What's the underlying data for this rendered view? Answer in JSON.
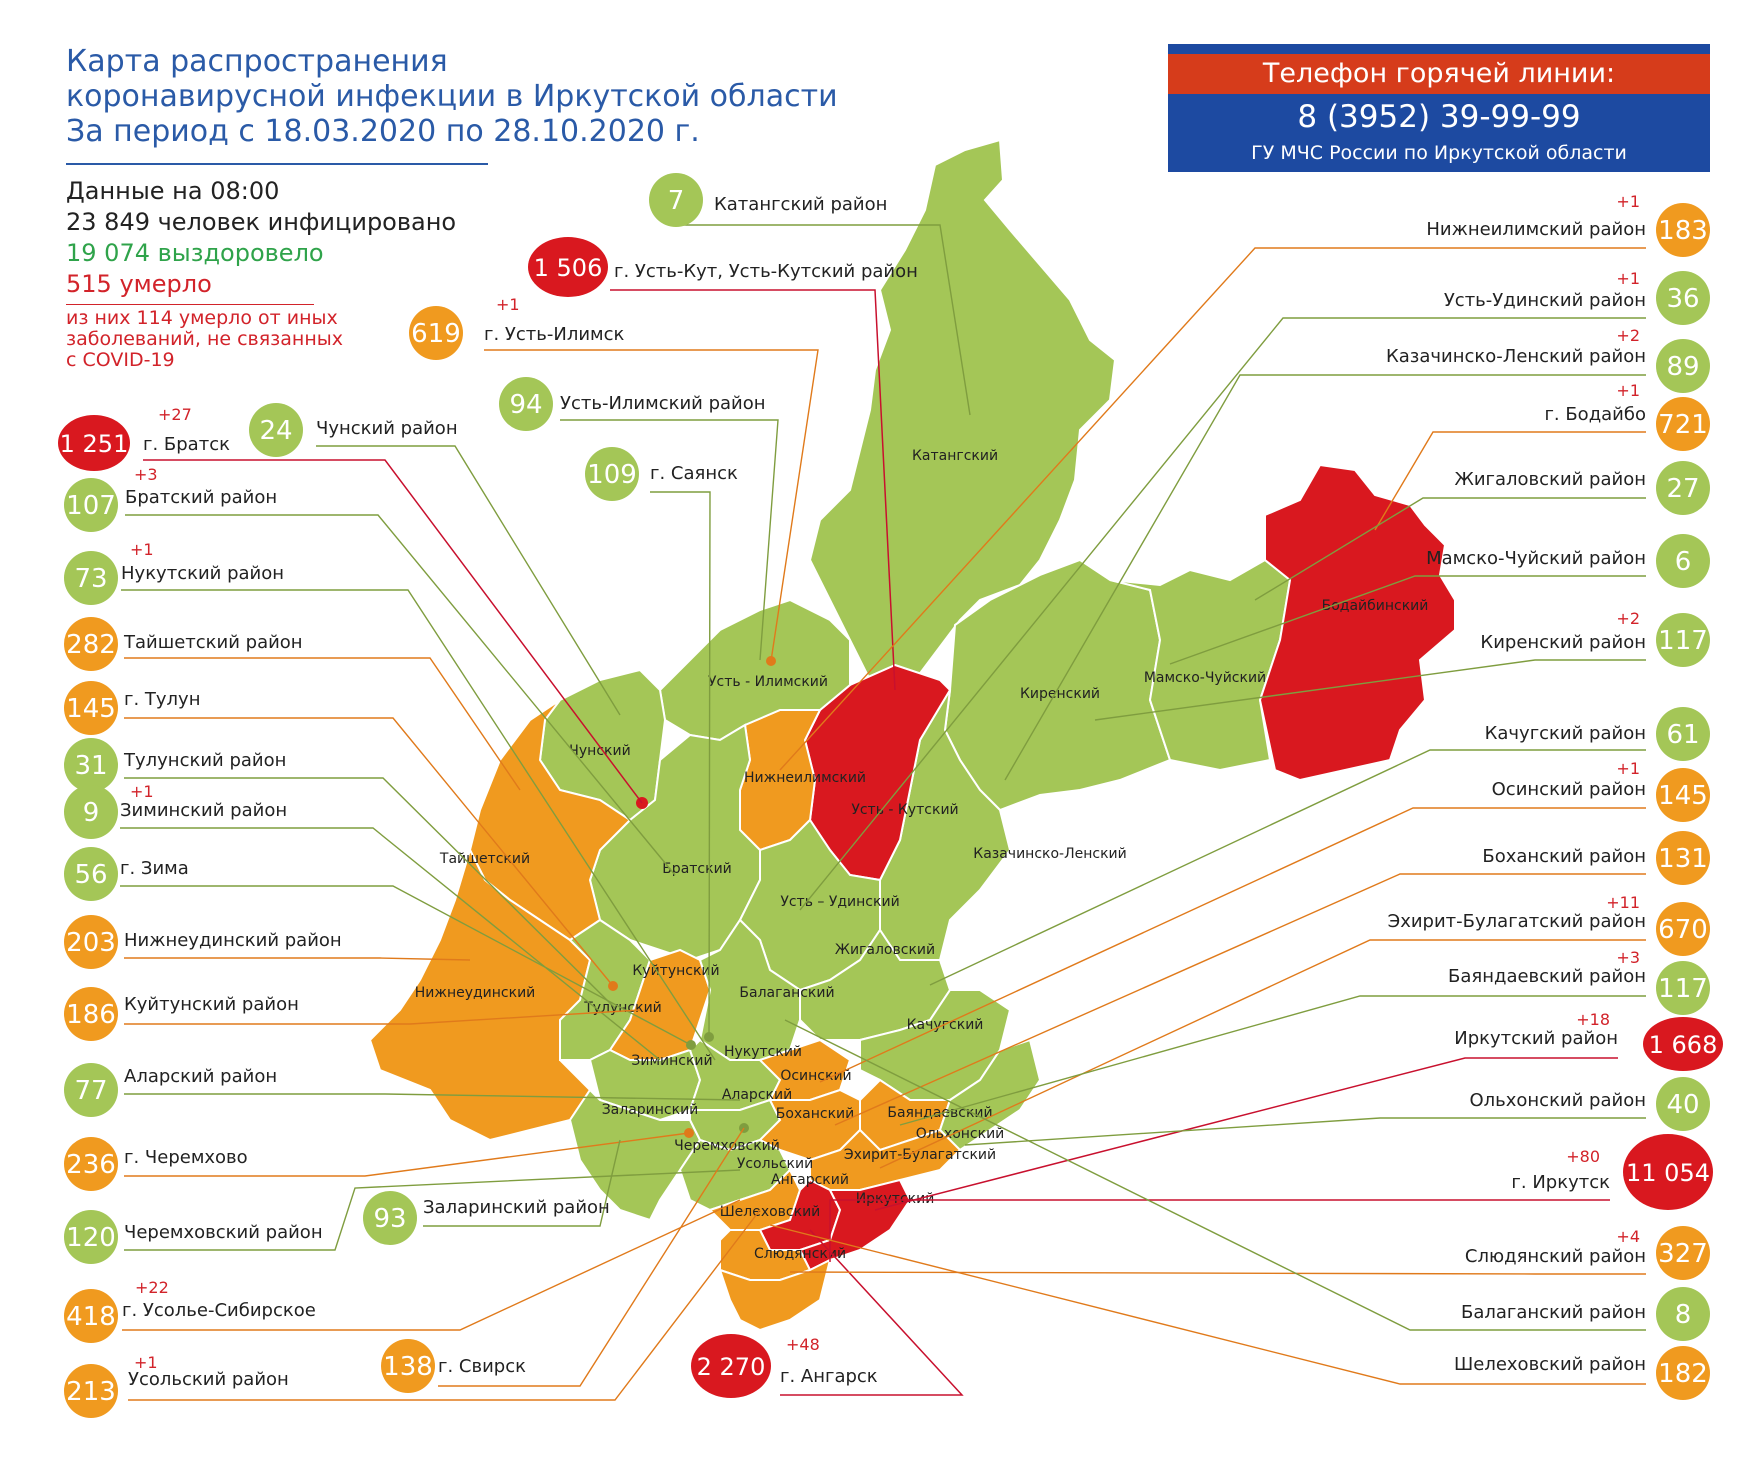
{
  "title": {
    "line1": "Карта распространения",
    "line2": "коронавирусной инфекции в Иркутской области",
    "line3": "За период с 18.03.2020 по 28.10.2020 г."
  },
  "stats": {
    "as_of": "Данные на 08:00",
    "infected": "23 849  человек инфицировано",
    "recovered": "19 074  выздоровело",
    "died": "515 умерло",
    "note_line1": "из них 114 умерло от иных",
    "note_line2": "заболеваний, не связанных",
    "note_line3": "с COVID-19"
  },
  "hotline": {
    "heading": "Телефон горячей линии:",
    "phone": "8 (3952) 39-99-99",
    "org": "ГУ МЧС России по Иркутской области"
  },
  "colors": {
    "green": "#a4c657",
    "orange": "#f09a1f",
    "red": "#d9181f",
    "green_line": "#7f9d3f",
    "orange_line": "#e07a1b",
    "red_line": "#c8102e"
  },
  "map_region_labels": {
    "katangsky": "Катангский",
    "chunsky": "Чунский",
    "ust_ilimsky": "Усть - Илимский",
    "nizhneilimsky": "Нижнеилимский",
    "ust_kutsky": "Усть - Кутский",
    "kirensky": "Киренский",
    "mamsko_chuysky": "Мамско-Чуйский",
    "bodaibinsky": "Бодайбинский",
    "kazachinsko_lensky": "Казачинско-Ленский",
    "bratsky": "Братский",
    "taishetsky": "Тайшетский",
    "ust_udinsky": "Усть – Удинский",
    "zhigalovsky": "Жигаловский",
    "kuytunsky": "Куйтунский",
    "balagansky": "Балаганский",
    "nizhneudinsky": "Нижнеудинский",
    "tulunsky": "Тулунский",
    "kachugsky": "Качугский",
    "ziminsky": "Зиминский",
    "nukutsky": "Нукутский",
    "osinsky": "Осинский",
    "alarsky": "Аларский",
    "zalarinsky": "Заларинский",
    "bokhansky": "Боханский",
    "bayandaevsky": "Баяндаевский",
    "olkhonsky": "Ольхонский",
    "cheremkhovsky": "Черемховский",
    "ekhirit": "Эхирит-Булагатский",
    "usolsky": "Усольский",
    "angarsky": "Ангарский",
    "irkutsky": "Иркутский",
    "shelekhovsky": "Шелеховский",
    "slyudyansky": "Слюдянский"
  },
  "districts": [
    {
      "id": "katanga",
      "label": "Катангский район",
      "value": "7",
      "delta": "",
      "color": "green"
    },
    {
      "id": "ust_kut",
      "label": "г. Усть-Кут, Усть-Кутский район",
      "value": "1 506",
      "delta": "",
      "color": "red"
    },
    {
      "id": "ust_ilimsk",
      "label": "г. Усть-Илимск",
      "value": "619",
      "delta": "+1",
      "color": "orange"
    },
    {
      "id": "ust_ilimsky",
      "label": "Усть-Илимский район",
      "value": "94",
      "delta": "",
      "color": "green"
    },
    {
      "id": "chunsky",
      "label": "Чунский район",
      "value": "24",
      "delta": "",
      "color": "green"
    },
    {
      "id": "bratsk",
      "label": "г. Братск",
      "value": "1 251",
      "delta": "+27",
      "color": "red"
    },
    {
      "id": "sayansk",
      "label": "г. Саянск",
      "value": "109",
      "delta": "",
      "color": "green"
    },
    {
      "id": "bratsky",
      "label": "Братский район",
      "value": "107",
      "delta": "+3",
      "color": "green"
    },
    {
      "id": "nukutsky",
      "label": "Нукутский район",
      "value": "73",
      "delta": "+1",
      "color": "green"
    },
    {
      "id": "taishetsky",
      "label": "Тайшетский район",
      "value": "282",
      "delta": "",
      "color": "orange"
    },
    {
      "id": "tulun",
      "label": "г. Тулун",
      "value": "145",
      "delta": "",
      "color": "orange"
    },
    {
      "id": "tulunsky",
      "label": "Тулунский район",
      "value": "31",
      "delta": "",
      "color": "green"
    },
    {
      "id": "ziminsky",
      "label": "Зиминский район",
      "value": "9",
      "delta": "+1",
      "color": "green"
    },
    {
      "id": "zima",
      "label": "г. Зима",
      "value": "56",
      "delta": "",
      "color": "green"
    },
    {
      "id": "nizhneudinsky",
      "label": "Нижнеудинский район",
      "value": "203",
      "delta": "",
      "color": "orange"
    },
    {
      "id": "kuytunsky",
      "label": "Куйтунский район",
      "value": "186",
      "delta": "",
      "color": "orange"
    },
    {
      "id": "alarsky",
      "label": "Аларский район",
      "value": "77",
      "delta": "",
      "color": "green"
    },
    {
      "id": "cheremkhovo",
      "label": "г. Черемхово",
      "value": "236",
      "delta": "",
      "color": "orange"
    },
    {
      "id": "cheremkhovsky",
      "label": "Черемховский район",
      "value": "120",
      "delta": "",
      "color": "green"
    },
    {
      "id": "zalarinsky",
      "label": "Заларинский район",
      "value": "93",
      "delta": "",
      "color": "green"
    },
    {
      "id": "usolye",
      "label": "г. Усолье-Сибирское",
      "value": "418",
      "delta": "+22",
      "color": "orange"
    },
    {
      "id": "svirsk",
      "label": "г. Свирск",
      "value": "138",
      "delta": "",
      "color": "orange"
    },
    {
      "id": "usolsky",
      "label": "Усольский район",
      "value": "213",
      "delta": "+1",
      "color": "orange"
    },
    {
      "id": "angarsk",
      "label": "г. Ангарск",
      "value": "2 270",
      "delta": "+48",
      "color": "red"
    },
    {
      "id": "nizhneilimsky",
      "label": "Нижнеилимский район",
      "value": "183",
      "delta": "+1",
      "color": "orange"
    },
    {
      "id": "ust_udinsky",
      "label": "Усть-Удинский район",
      "value": "36",
      "delta": "+1",
      "color": "green"
    },
    {
      "id": "kazachinsko",
      "label": "Казачинско-Ленский район",
      "value": "89",
      "delta": "+2",
      "color": "green"
    },
    {
      "id": "bodaibo",
      "label": "г. Бодайбо",
      "value": "721",
      "delta": "+1",
      "color": "orange"
    },
    {
      "id": "zhigalovsky",
      "label": "Жигаловский район",
      "value": "27",
      "delta": "",
      "color": "green"
    },
    {
      "id": "mamsko",
      "label": "Мамско-Чуйский район",
      "value": "6",
      "delta": "",
      "color": "green"
    },
    {
      "id": "kirensky",
      "label": "Киренский район",
      "value": "117",
      "delta": "+2",
      "color": "green"
    },
    {
      "id": "kachugsky",
      "label": "Качугский район",
      "value": "61",
      "delta": "",
      "color": "green"
    },
    {
      "id": "osinsky",
      "label": "Осинский район",
      "value": "145",
      "delta": "+1",
      "color": "orange"
    },
    {
      "id": "bokhansky",
      "label": "Боханский район",
      "value": "131",
      "delta": "",
      "color": "orange"
    },
    {
      "id": "ekhirit",
      "label": "Эхирит-Булагатский район",
      "value": "670",
      "delta": "+11",
      "color": "orange"
    },
    {
      "id": "bayandaevsky",
      "label": "Баяндаевский район",
      "value": "117",
      "delta": "+3",
      "color": "green"
    },
    {
      "id": "irkutsky",
      "label": "Иркутский район",
      "value": "1 668",
      "delta": "+18",
      "color": "red"
    },
    {
      "id": "olkhonsky",
      "label": "Ольхонский район",
      "value": "40",
      "delta": "",
      "color": "green"
    },
    {
      "id": "irkutsk",
      "label": "г. Иркутск",
      "value": "11 054",
      "delta": "+80",
      "color": "red"
    },
    {
      "id": "slyudyansky",
      "label": "Слюдянский район",
      "value": "327",
      "delta": "+4",
      "color": "orange"
    },
    {
      "id": "balagansky",
      "label": "Балаганский район",
      "value": "8",
      "delta": "",
      "color": "green"
    },
    {
      "id": "shelekhovsky",
      "label": "Шелеховский район",
      "value": "182",
      "delta": "",
      "color": "orange"
    }
  ]
}
